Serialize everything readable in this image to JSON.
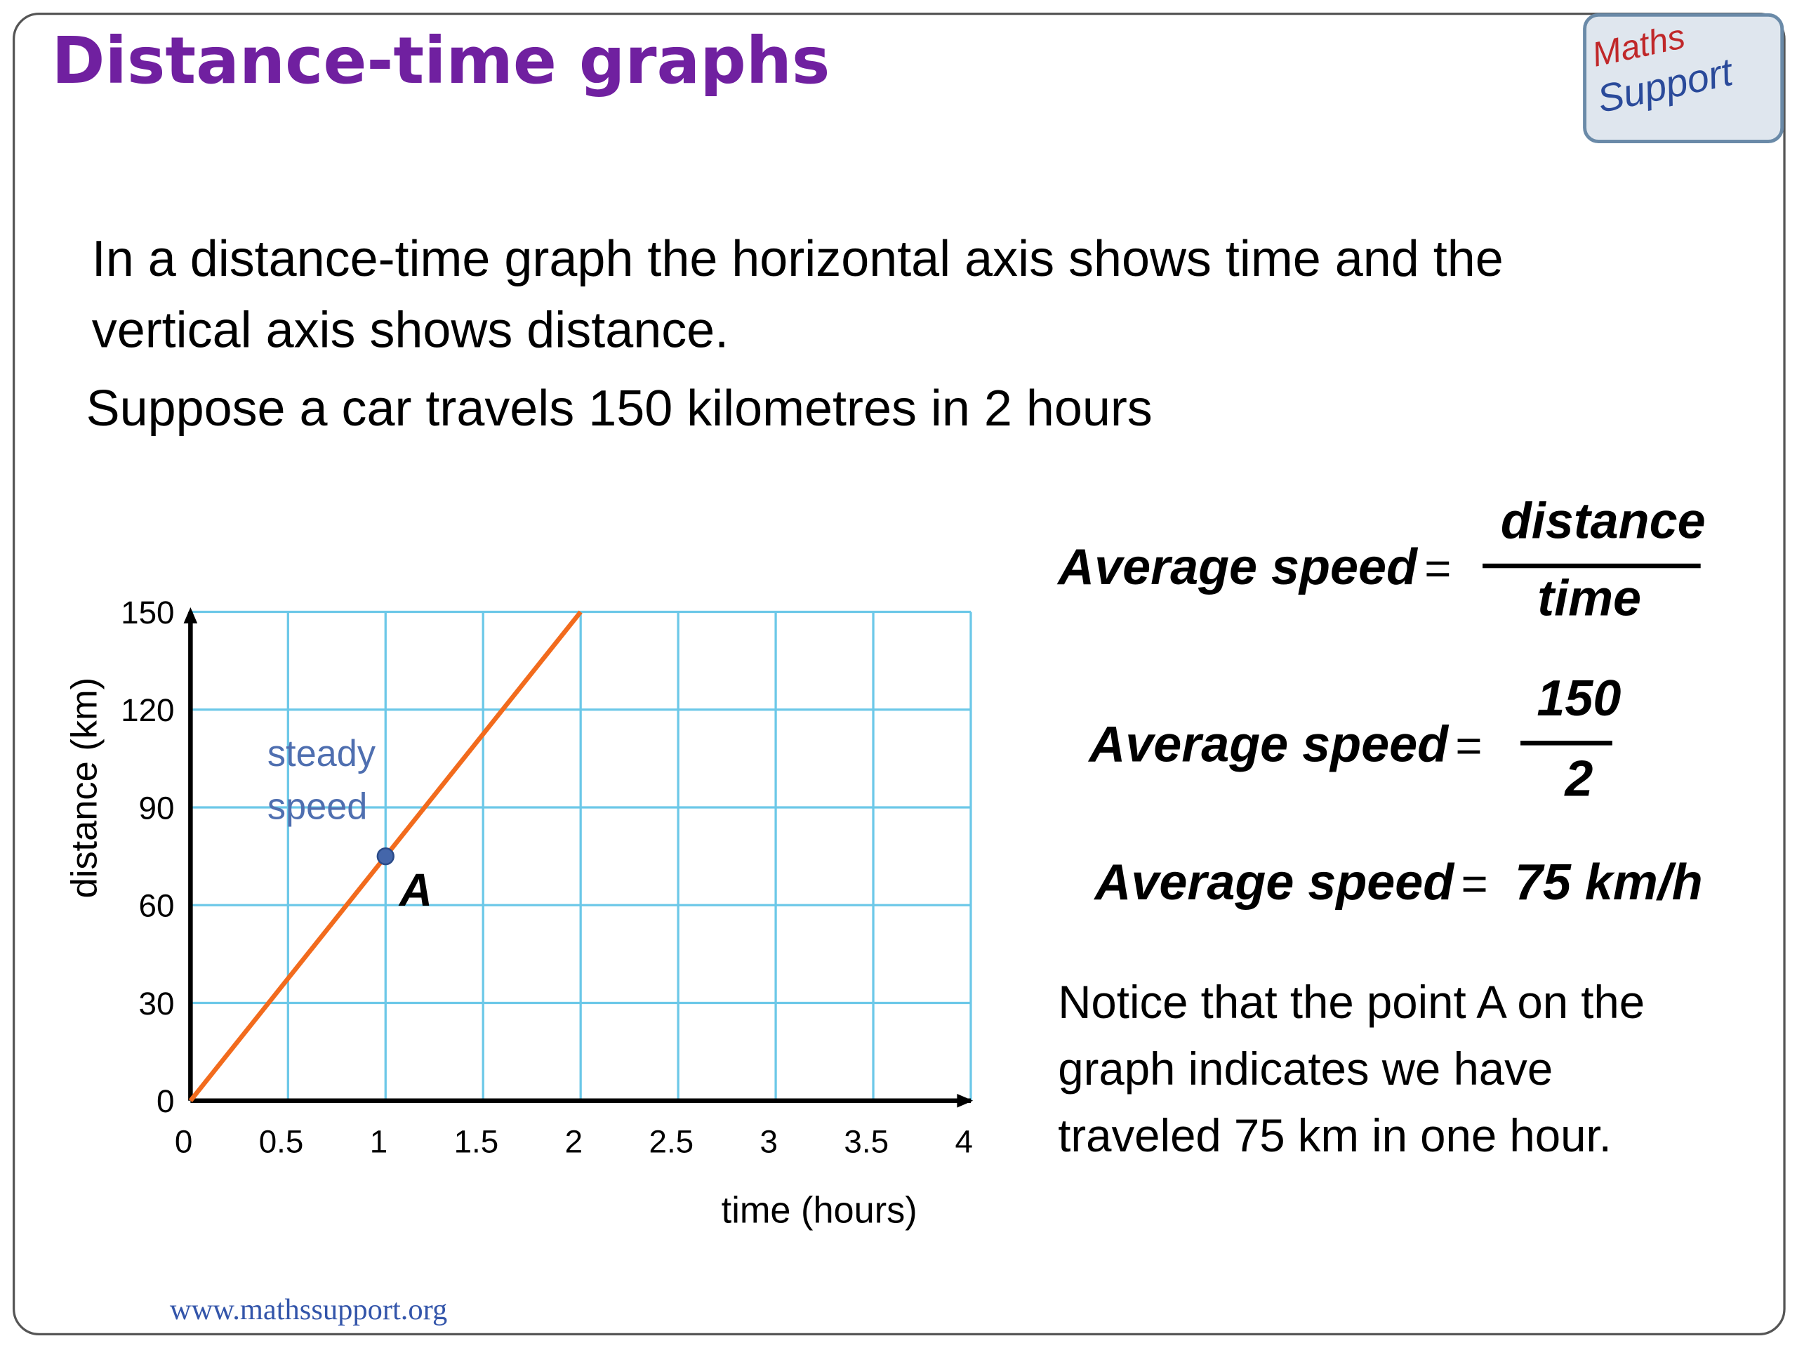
{
  "title": "Distance-time graphs",
  "logo": [
    "Maths",
    "Support"
  ],
  "intro": [
    "In a distance-time graph the horizontal axis shows time and the",
    "vertical axis shows distance."
  ],
  "suppose": "Suppose a car travels 150 kilometres in 2 hours",
  "formulas": [
    {
      "lhs": "Average speed",
      "eq": "=",
      "num": "distance",
      "den": "time"
    },
    {
      "lhs": "Average speed",
      "eq": "=",
      "num": "150",
      "den": "2"
    },
    {
      "lhs": "Average speed",
      "eq": "=",
      "rhs": "75 km/h"
    }
  ],
  "notice": [
    "Notice that the point A on the",
    "graph indicates we have",
    "traveled 75 km in one hour."
  ],
  "footer": "www.mathssupport.org",
  "chart_data": {
    "type": "line",
    "x": [
      0,
      2
    ],
    "values": [
      0,
      150
    ],
    "color": "#f26b1d",
    "xlim": [
      0,
      4
    ],
    "ylim": [
      0,
      150
    ],
    "xticks": [
      0,
      0.5,
      1,
      1.5,
      2,
      2.5,
      3,
      3.5,
      4
    ],
    "yticks": [
      0,
      30,
      60,
      90,
      120,
      150
    ],
    "grid": true,
    "xlabel": "time (hours)",
    "ylabel": "distance (km)",
    "annotation": [
      "steady",
      "speed"
    ],
    "point": {
      "label": "A",
      "x": 1,
      "y": 75,
      "color": "#4466aa"
    }
  }
}
